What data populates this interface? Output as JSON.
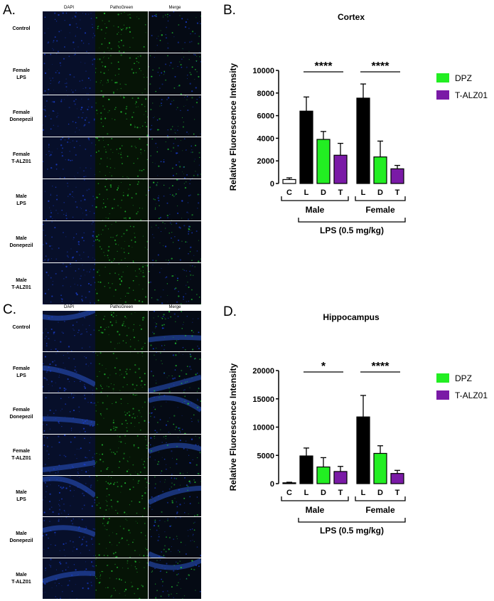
{
  "panels": {
    "a": {
      "letter": "A.",
      "columns": [
        "DAPI",
        "PathoGreen",
        "Merge"
      ],
      "rows": [
        "Control",
        "Female\nLPS",
        "Female\nDonepezil",
        "Female\nT-ALZ01",
        "Male\nLPS",
        "Male\nDonepezil",
        "Male\nT-ALZ01"
      ]
    },
    "c": {
      "letter": "C.",
      "columns": [
        "DAPI",
        "PathoGreen",
        "Merge"
      ],
      "rows": [
        "Control",
        "Female\nLPS",
        "Female\nDonepezil",
        "Female\nT-ALZ01",
        "Male\nLPS",
        "Male\nDonepezil",
        "Male\nT-ALZ01"
      ]
    },
    "b": {
      "letter": "B."
    },
    "d": {
      "letter": "D."
    }
  },
  "colors": {
    "lps": "#000000",
    "dpz": "#22ee22",
    "talz": "#7a1aa6",
    "control": "#ffffff",
    "dapi": "#1a3fd0",
    "pathogreen": "#22cc33"
  },
  "chart_data": [
    {
      "type": "bar",
      "title": "Cortex",
      "ylabel": "Relative Fluorescence Intensity",
      "ylim": [
        0,
        10000
      ],
      "yticks": [
        0,
        2000,
        4000,
        6000,
        8000,
        10000
      ],
      "categories": [
        "C",
        "L",
        "D",
        "T",
        "L",
        "D",
        "T"
      ],
      "values": [
        350,
        6400,
        3900,
        2500,
        7550,
        2350,
        1300
      ],
      "errors": [
        150,
        1250,
        700,
        1050,
        1250,
        1400,
        300
      ],
      "bar_groups": [
        "control",
        "lps",
        "dpz",
        "talz",
        "lps",
        "dpz",
        "talz"
      ],
      "legend": [
        {
          "name": "DPZ",
          "group": "dpz"
        },
        {
          "name": "T-ALZ01",
          "group": "talz"
        }
      ],
      "legend_position": "right",
      "groups": [
        {
          "label": "Male",
          "from": 0,
          "to": 3
        },
        {
          "label": "Female",
          "from": 4,
          "to": 6
        }
      ],
      "treatment_label": "LPS (0.5 mg/kg)",
      "significance": [
        {
          "label": "****",
          "from": 1,
          "to": 3
        },
        {
          "label": "****",
          "from": 4,
          "to": 6
        }
      ]
    },
    {
      "type": "bar",
      "title": "Hippocampus",
      "ylabel": "Relative Fluorescence Intensity",
      "ylim": [
        0,
        20000
      ],
      "yticks": [
        0,
        5000,
        10000,
        15000,
        20000
      ],
      "categories": [
        "C",
        "L",
        "D",
        "T",
        "L",
        "D",
        "T"
      ],
      "values": [
        150,
        4900,
        2950,
        2150,
        11800,
        5350,
        1800
      ],
      "errors": [
        100,
        1400,
        1650,
        900,
        3800,
        1350,
        550
      ],
      "bar_groups": [
        "control",
        "lps",
        "dpz",
        "talz",
        "lps",
        "dpz",
        "talz"
      ],
      "legend": [
        {
          "name": "DPZ",
          "group": "dpz"
        },
        {
          "name": "T-ALZ01",
          "group": "talz"
        }
      ],
      "legend_position": "right",
      "groups": [
        {
          "label": "Male",
          "from": 0,
          "to": 3
        },
        {
          "label": "Female",
          "from": 4,
          "to": 6
        }
      ],
      "treatment_label": "LPS (0.5 mg/kg)",
      "significance": [
        {
          "label": "*",
          "from": 1,
          "to": 3
        },
        {
          "label": "****",
          "from": 4,
          "to": 6
        }
      ]
    }
  ]
}
